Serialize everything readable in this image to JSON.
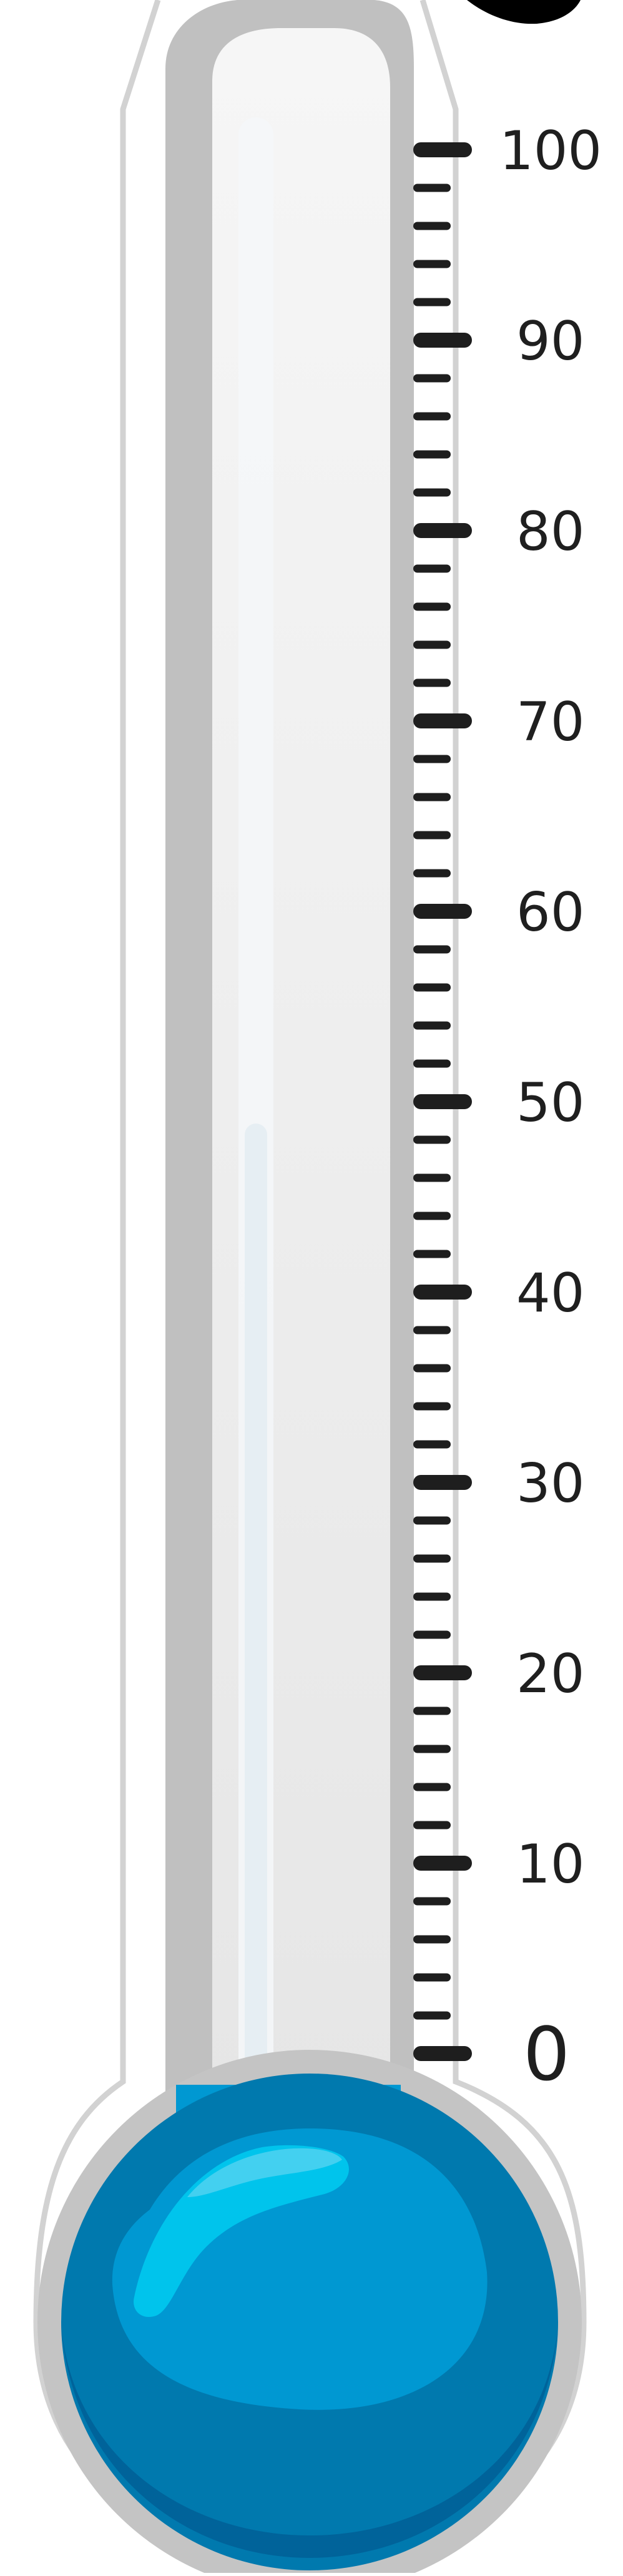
{
  "thermometer": {
    "scale": {
      "min": 0,
      "max": 100,
      "major_step": 10,
      "minor_per_major": 5,
      "labels": [
        "100",
        "90",
        "80",
        "70",
        "60",
        "50",
        "40",
        "30",
        "20",
        "10",
        "0"
      ]
    },
    "reading": 0,
    "colors": {
      "liquid": "#0098d2",
      "liquid_dark": "#0079ae",
      "liquid_deep": "#00639a",
      "glass": "#e6e6e6",
      "glass_rim": "#bfbfbf",
      "outline": "#d2d2d2",
      "tick": "#1e1e1e",
      "highlight": "#00c4ec"
    },
    "icons": [
      "thermometer-icon"
    ]
  }
}
